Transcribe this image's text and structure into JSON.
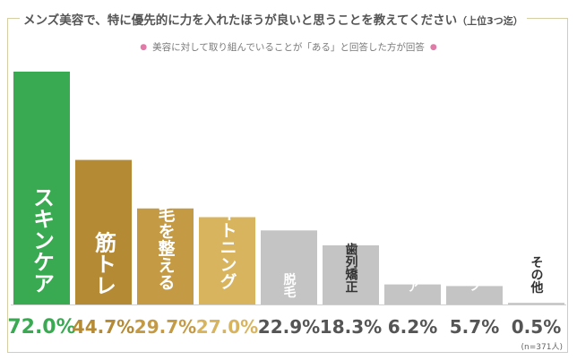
{
  "header": {
    "title": "メンズ美容で、特に優先的に力を入れたほうが良いと思うことを教えてください",
    "title_suffix": "（上位3つ迄）",
    "note": "美容に対して取り組んでいることが「ある」と回答した方が回答"
  },
  "sample_size": "(n=371人)",
  "chart_data": {
    "type": "bar",
    "title": "メンズ美容で、特に優先的に力を入れたほうが良いと思うことを教えてください（上位3つ迄）",
    "xlabel": "",
    "ylabel": "",
    "ylim": [
      0,
      80
    ],
    "grid": false,
    "categories": [
      "スキンケア",
      "筋トレ",
      "眉毛を整える",
      "ホワイトニング",
      "脱毛",
      "歯列矯正",
      "ネイルケア",
      "メンズメイク",
      "その他"
    ],
    "values": [
      72.0,
      44.7,
      29.7,
      27.0,
      22.9,
      18.3,
      6.2,
      5.7,
      0.5
    ],
    "value_labels": [
      "72.0%",
      "44.7%",
      "29.7%",
      "27.0%",
      "22.9%",
      "18.3%",
      "6.2%",
      "5.7%",
      "0.5%"
    ],
    "bar_colors": [
      "#3aaa52",
      "#b48a34",
      "#c49a44",
      "#d8b45e",
      "#c4c4c4",
      "#c4c4c4",
      "#c4c4c4",
      "#c4c4c4",
      "#c4c4c4"
    ],
    "label_colors": [
      "#ffffff",
      "#ffffff",
      "#ffffff",
      "#ffffff",
      "#ffffff",
      "#333333",
      "#ffffff",
      "#ffffff",
      "#333333"
    ],
    "value_colors": [
      "#3aaa52",
      "#b48a34",
      "#c49a44",
      "#d8b45e",
      "#555555",
      "#555555",
      "#555555",
      "#555555",
      "#555555"
    ]
  }
}
